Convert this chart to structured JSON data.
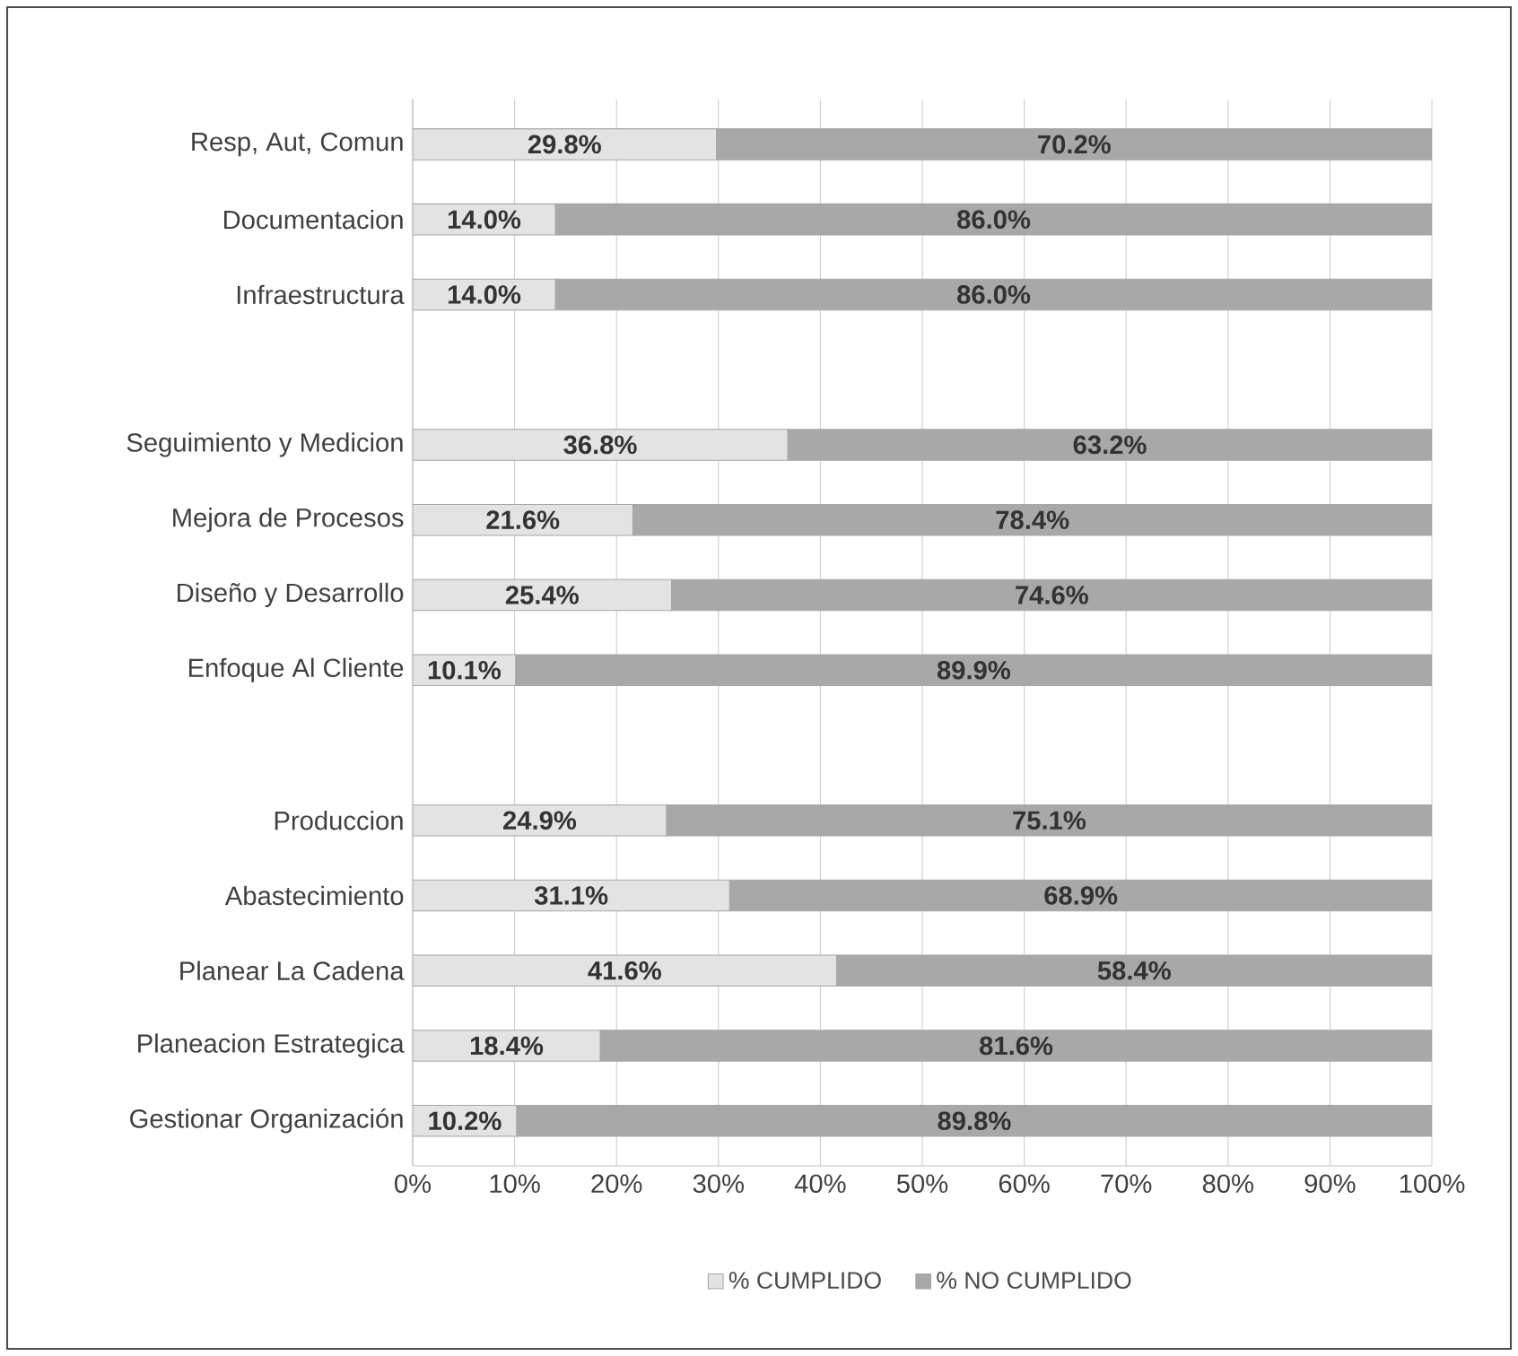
{
  "chart_data": {
    "type": "bar",
    "orientation": "horizontal",
    "stacked": true,
    "categories": [
      "Resp, Aut, Comun",
      "Documentacion",
      "Infraestructura",
      null,
      "Seguimiento y Medicion",
      "Mejora de Procesos",
      "Diseño y Desarrollo",
      "Enfoque Al Cliente",
      null,
      "Produccion",
      "Abastecimiento",
      "Planear La Cadena",
      "Planeacion Estrategica",
      "Gestionar Organización"
    ],
    "series": [
      {
        "name": "% CUMPLIDO",
        "color": "#e3e3e3",
        "values": [
          29.8,
          14.0,
          14.0,
          null,
          36.8,
          21.6,
          25.4,
          10.1,
          null,
          24.9,
          31.1,
          41.6,
          18.4,
          10.2
        ],
        "value_labels": [
          "29.8%",
          "14.0%",
          "14.0%",
          null,
          "36.8%",
          "21.6%",
          "25.4%",
          "10.1%",
          null,
          "24.9%",
          "31.1%",
          "41.6%",
          "18.4%",
          "10.2%"
        ]
      },
      {
        "name": "% NO CUMPLIDO",
        "color": "#a8a8a8",
        "values": [
          70.2,
          86.0,
          86.0,
          null,
          63.2,
          78.4,
          74.6,
          89.9,
          null,
          75.1,
          68.9,
          58.4,
          81.6,
          89.8
        ],
        "value_labels": [
          "70.2%",
          "86.0%",
          "86.0%",
          null,
          "63.2%",
          "78.4%",
          "74.6%",
          "89.9%",
          null,
          "75.1%",
          "68.9%",
          "58.4%",
          "81.6%",
          "89.8%"
        ]
      }
    ],
    "xlim": [
      0,
      100
    ],
    "xticks": [
      {
        "value": 0,
        "label": "0%"
      },
      {
        "value": 10,
        "label": "10%"
      },
      {
        "value": 20,
        "label": "20%"
      },
      {
        "value": 30,
        "label": "30%"
      },
      {
        "value": 40,
        "label": "40%"
      },
      {
        "value": 50,
        "label": "50%"
      },
      {
        "value": 60,
        "label": "60%"
      },
      {
        "value": 70,
        "label": "70%"
      },
      {
        "value": 80,
        "label": "80%"
      },
      {
        "value": 90,
        "label": "90%"
      },
      {
        "value": 100,
        "label": "100%"
      }
    ],
    "grid": "x",
    "legend": "bottom"
  }
}
